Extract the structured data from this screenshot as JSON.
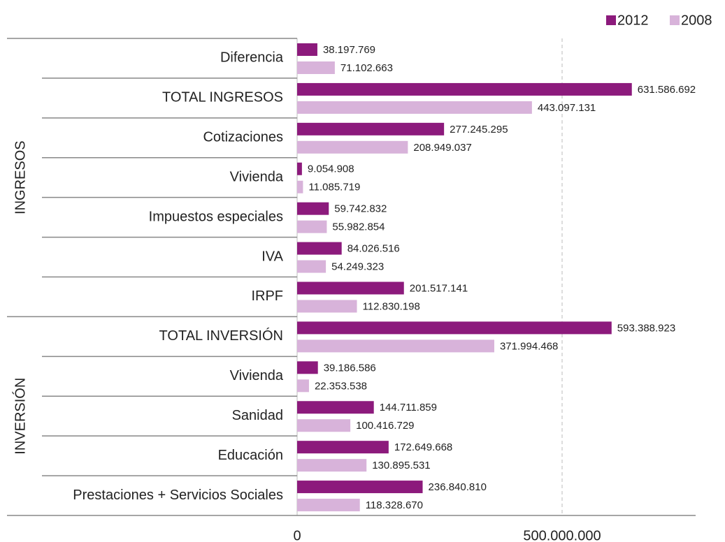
{
  "chart_data": {
    "type": "bar",
    "orientation": "horizontal",
    "legend": "top-right",
    "grid": true,
    "xlim": [
      0,
      750000000
    ],
    "xticks": [
      0,
      {
        "value": 500000000,
        "label": "500.000.000"
      }
    ],
    "series": [
      {
        "name": "2012",
        "color": "#8c1a7c"
      },
      {
        "name": "2008",
        "color": "#d8b3da"
      }
    ],
    "groups": [
      {
        "name": "INGRESOS",
        "categories": [
          "Diferencia",
          "TOTAL INGRESOS",
          "Cotizaciones",
          "Vivienda",
          "Impuestos especiales",
          "IVA",
          "IRPF"
        ],
        "series": [
          {
            "values": [
              38197769,
              631586692,
              277245295,
              9054908,
              59742832,
              84026516,
              201517141
            ],
            "value_labels": [
              "38.197.769",
              "631.586.692",
              "277.245.295",
              "9.054.908",
              "59.742.832",
              "84.026.516",
              "201.517.141"
            ]
          },
          {
            "values": [
              71102663,
              443097131,
              208949037,
              11085719,
              55982854,
              54249323,
              112830198
            ],
            "value_labels": [
              "71.102.663",
              "443.097.131",
              "208.949.037",
              "11.085.719",
              "55.982.854",
              "54.249.323",
              "112.830.198"
            ]
          }
        ]
      },
      {
        "name": "INVERSIÓN",
        "categories": [
          "TOTAL INVERSIÓN",
          "Vivienda",
          "Sanidad",
          "Educación",
          "Prestaciones + Servicios Sociales"
        ],
        "series": [
          {
            "values": [
              593388923,
              39186586,
              144711859,
              172649668,
              236840810
            ],
            "value_labels": [
              "593.388.923",
              "39.186.586",
              "144.711.859",
              "172.649.668",
              "236.840.810"
            ]
          },
          {
            "values": [
              371994468,
              22353538,
              100416729,
              130895531,
              118328670
            ],
            "value_labels": [
              "371.994.468",
              "22.353.538",
              "100.416.729",
              "130.895.531",
              "118.328.670"
            ]
          }
        ]
      }
    ]
  }
}
